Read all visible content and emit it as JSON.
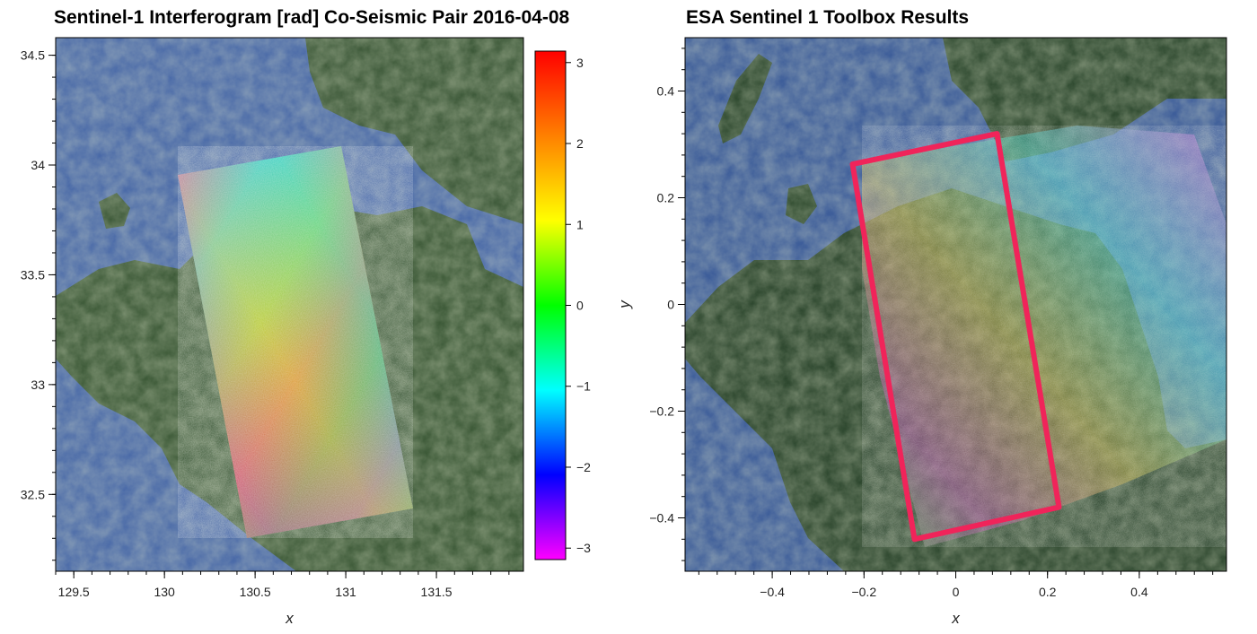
{
  "chart_data": [
    {
      "type": "heatmap",
      "title": "Sentinel-1 Interferogram [rad] Co-Seismic Pair 2016-04-08",
      "xlabel": "x",
      "ylabel": "",
      "xlim": [
        129.4,
        131.98
      ],
      "ylim": [
        32.15,
        34.58
      ],
      "x_ticks": [
        129.5,
        130,
        130.5,
        131,
        131.5
      ],
      "x_tick_labels": [
        "129.5",
        "130",
        "130.5",
        "131",
        "131.5"
      ],
      "y_ticks": [
        32.5,
        33,
        33.5,
        34,
        34.5
      ],
      "y_tick_labels": [
        "32.5",
        "33",
        "33.5",
        "34",
        "34.5"
      ],
      "background": "satellite basemap",
      "interferogram_corners": [
        [
          130.07,
          33.97
        ],
        [
          130.98,
          34.1
        ],
        [
          131.37,
          32.44
        ],
        [
          130.44,
          32.29
        ]
      ],
      "colorbar": {
        "colormap": "hsv",
        "range": [
          -3.14159,
          3.14159
        ],
        "ticks": [
          -3,
          -2,
          -1,
          0,
          1,
          2,
          3
        ],
        "tick_labels": [
          "−3",
          "−2",
          "−1",
          "0",
          "1",
          "2",
          "3"
        ]
      }
    },
    {
      "type": "heatmap",
      "title": "ESA Sentinel 1 Toolbox Results",
      "xlabel": "x",
      "ylabel": "y",
      "xlim": [
        -0.59,
        0.59
      ],
      "ylim": [
        -0.5,
        0.5
      ],
      "x_ticks": [
        -0.4,
        -0.2,
        0,
        0.2,
        0.4
      ],
      "x_tick_labels": [
        "−0.4",
        "−0.2",
        "0",
        "0.2",
        "0.4"
      ],
      "y_ticks": [
        -0.4,
        -0.2,
        0,
        0.2,
        0.4
      ],
      "y_tick_labels": [
        "−0.4",
        "−0.2",
        "0",
        "0.2",
        "0.4"
      ],
      "background": "satellite image",
      "highlight_box": {
        "color": "#f0245a",
        "corners": [
          [
            -0.225,
            0.263
          ],
          [
            0.09,
            0.32
          ],
          [
            0.225,
            -0.38
          ],
          [
            -0.09,
            -0.44
          ]
        ]
      }
    }
  ]
}
